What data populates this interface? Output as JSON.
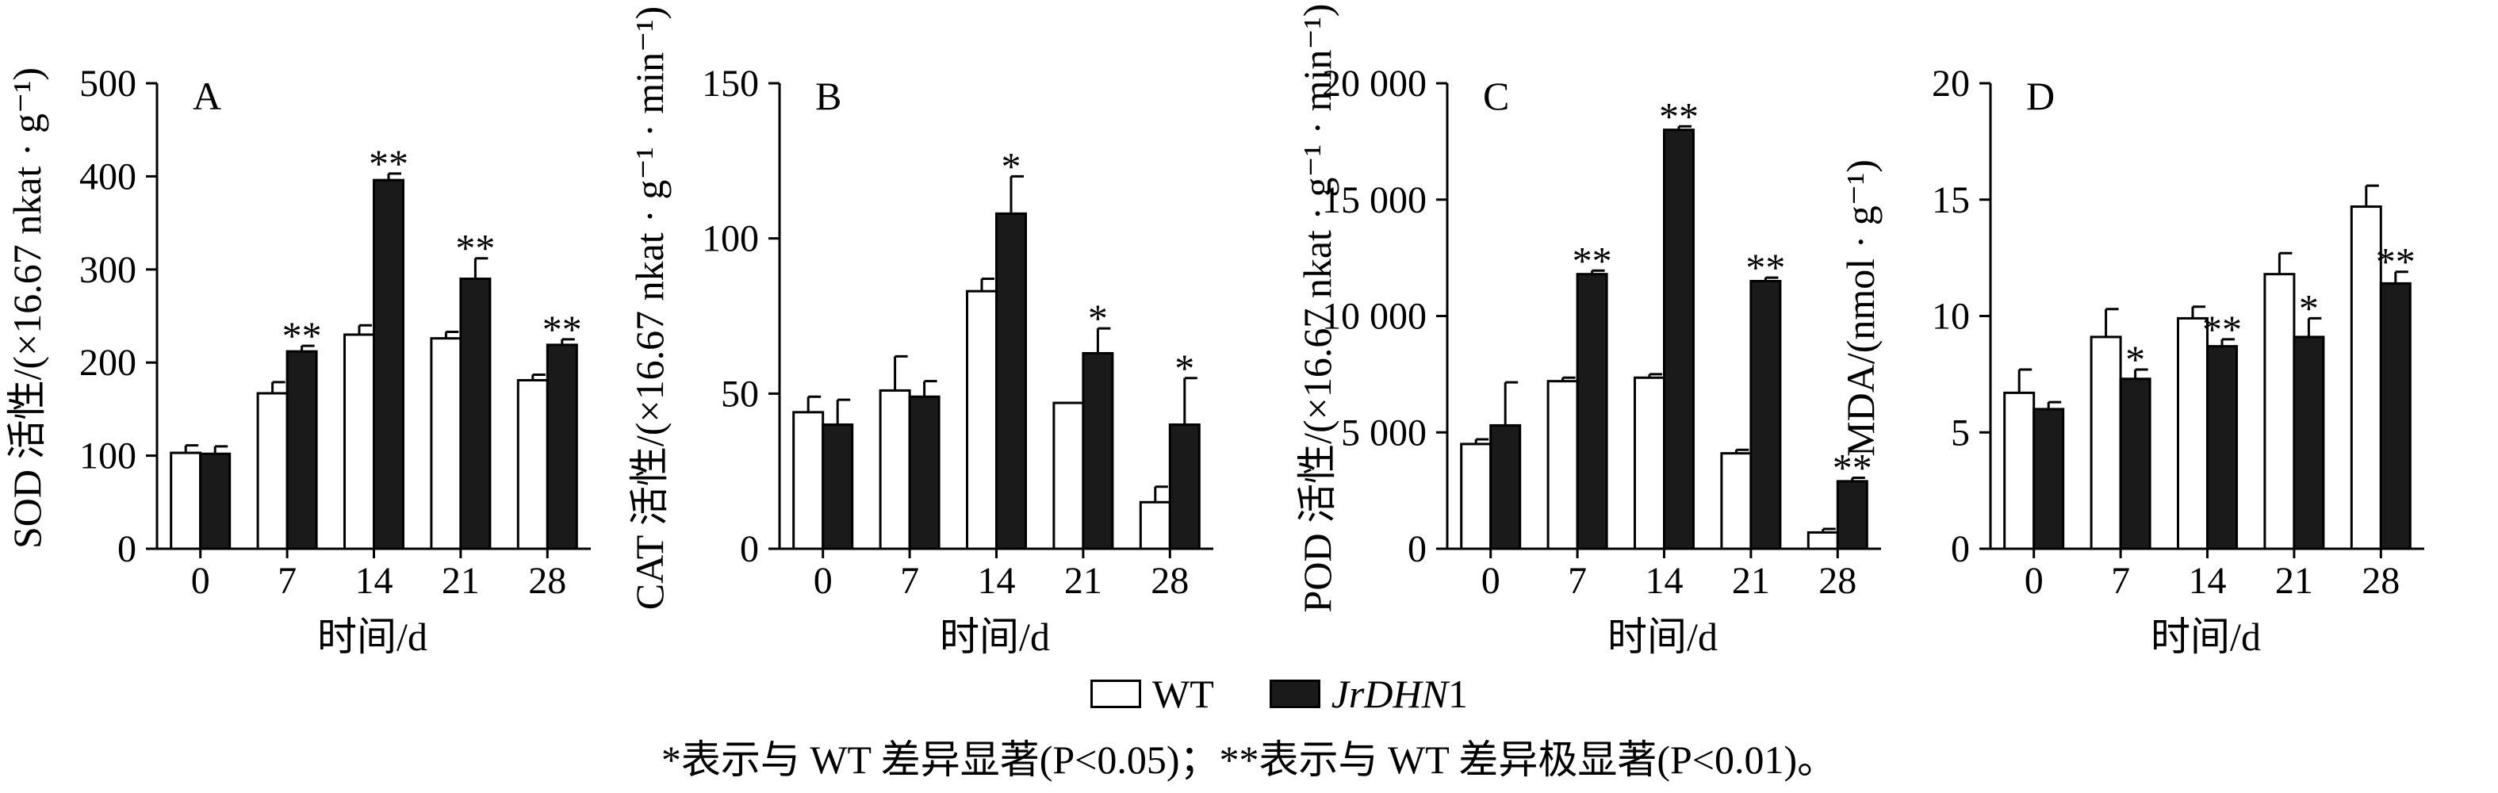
{
  "colors": {
    "wt_fill": "#ffffff",
    "mutant_fill": "#1a1a1a",
    "stroke": "#000000"
  },
  "chart_data": [
    {
      "type": "bar",
      "panel": "A",
      "categories": [
        "0",
        "7",
        "14",
        "21",
        "28"
      ],
      "xlabel": "时间/d",
      "ylabel": "SOD 活性/(×16.67 nkat · g⁻¹)",
      "ylim": [
        0,
        500
      ],
      "yticks": [
        0,
        100,
        200,
        300,
        400,
        500
      ],
      "ytick_labels": [
        "0",
        "100",
        "200",
        "300",
        "400",
        "500"
      ],
      "series": [
        {
          "name": "WT",
          "values": [
            103,
            167,
            230,
            226,
            181
          ],
          "errors": [
            8,
            12,
            10,
            7,
            6
          ],
          "sig": [
            "",
            "",
            "",
            "",
            ""
          ]
        },
        {
          "name": "JrDHN1",
          "values": [
            102,
            212,
            396,
            290,
            219
          ],
          "errors": [
            8,
            6,
            7,
            22,
            6
          ],
          "sig": [
            "",
            "**",
            "**",
            "**",
            "**"
          ]
        }
      ]
    },
    {
      "type": "bar",
      "panel": "B",
      "categories": [
        "0",
        "7",
        "14",
        "21",
        "28"
      ],
      "xlabel": "时间/d",
      "ylabel": "CAT 活性/(×16.67 nkat · g⁻¹ · min⁻¹)",
      "ylim": [
        0,
        150
      ],
      "yticks": [
        0,
        50,
        100,
        150
      ],
      "ytick_labels": [
        "0",
        "50",
        "100",
        "150"
      ],
      "series": [
        {
          "name": "WT",
          "values": [
            44,
            51,
            83,
            47,
            15
          ],
          "errors": [
            5,
            11,
            4,
            0,
            5
          ],
          "sig": [
            "",
            "",
            "",
            "",
            ""
          ]
        },
        {
          "name": "JrDHN1",
          "values": [
            40,
            49,
            108,
            63,
            40
          ],
          "errors": [
            8,
            5,
            12,
            8,
            15
          ],
          "sig": [
            "",
            "",
            "*",
            "*",
            "*"
          ]
        }
      ]
    },
    {
      "type": "bar",
      "panel": "C",
      "categories": [
        "0",
        "7",
        "14",
        "21",
        "28"
      ],
      "xlabel": "时间/d",
      "ylabel": "POD 活性/(×16.67 nkat · g⁻¹ · min⁻¹)",
      "ylim": [
        0,
        20000
      ],
      "yticks": [
        0,
        5000,
        10000,
        15000,
        20000
      ],
      "ytick_labels": [
        "0",
        "5 000",
        "10 000",
        "15 000",
        "20 000"
      ],
      "series": [
        {
          "name": "WT",
          "values": [
            4500,
            7200,
            7350,
            4100,
            700
          ],
          "errors": [
            200,
            150,
            150,
            150,
            150
          ],
          "sig": [
            "",
            "",
            "",
            "",
            ""
          ]
        },
        {
          "name": "JrDHN1",
          "values": [
            5300,
            11800,
            18000,
            11500,
            2900
          ],
          "errors": [
            1850,
            150,
            150,
            150,
            150
          ],
          "sig": [
            "",
            "**",
            "**",
            "**",
            "**"
          ]
        }
      ]
    },
    {
      "type": "bar",
      "panel": "D",
      "categories": [
        "0",
        "7",
        "14",
        "21",
        "28"
      ],
      "xlabel": "时间/d",
      "ylabel": "MDA/(nmol · g⁻¹)",
      "ylim": [
        0,
        20
      ],
      "yticks": [
        0,
        5,
        10,
        15,
        20
      ],
      "ytick_labels": [
        "0",
        "5",
        "10",
        "15",
        "20"
      ],
      "series": [
        {
          "name": "WT",
          "values": [
            6.7,
            9.1,
            9.9,
            11.8,
            14.7
          ],
          "errors": [
            1.0,
            1.2,
            0.5,
            0.9,
            0.9
          ],
          "sig": [
            "",
            "",
            "",
            "",
            ""
          ]
        },
        {
          "name": "JrDHN1",
          "values": [
            6.0,
            7.3,
            8.7,
            9.1,
            11.4
          ],
          "errors": [
            0.3,
            0.4,
            0.3,
            0.8,
            0.5
          ],
          "sig": [
            "",
            "*",
            "**",
            "*",
            "**"
          ]
        }
      ]
    }
  ],
  "legend": {
    "wt_label": "WT",
    "mutant_label": "JrDHN",
    "mutant_suffix": "1"
  },
  "footnote": "*表示与 WT 差异显著(P<0.05)；**表示与 WT 差异极显著(P<0.01)。"
}
